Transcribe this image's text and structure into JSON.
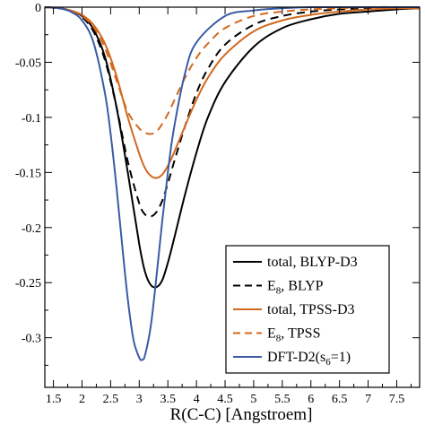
{
  "chart_data": {
    "type": "line",
    "xlabel": "R(C-C) [Angstroem]",
    "ylabel": "",
    "xlim": [
      1.35,
      7.9
    ],
    "ylim": [
      -0.345,
      0
    ],
    "x_ticks": [
      "1.5",
      "2",
      "2.5",
      "3",
      "3.5",
      "4",
      "4.5",
      "5",
      "5.5",
      "6",
      "6.5",
      "7",
      "7.5"
    ],
    "x_tick_values": [
      1.5,
      2,
      2.5,
      3,
      3.5,
      4,
      4.5,
      5,
      5.5,
      6,
      6.5,
      7,
      7.5
    ],
    "y_ticks": [
      "0",
      "-0.05",
      "-0.1",
      "-0.15",
      "-0.2",
      "-0.25",
      "-0.3"
    ],
    "y_tick_values": [
      0,
      -0.05,
      -0.1,
      -0.15,
      -0.2,
      -0.25,
      -0.3
    ],
    "grid": false,
    "legend_position": "bottom-right",
    "series": [
      {
        "name": "total, BLYP-D3",
        "label_main": "total, BLYP-D3",
        "color": "#000000",
        "dash": "solid",
        "x": [
          1.35,
          1.6,
          1.8,
          2.0,
          2.2,
          2.4,
          2.6,
          2.8,
          3.0,
          3.1,
          3.2,
          3.3,
          3.4,
          3.5,
          3.6,
          3.8,
          4.0,
          4.2,
          4.5,
          5.0,
          5.5,
          6.0,
          6.5,
          7.0,
          7.5,
          7.9
        ],
        "y": [
          0,
          -0.001,
          -0.003,
          -0.008,
          -0.02,
          -0.045,
          -0.09,
          -0.15,
          -0.215,
          -0.24,
          -0.252,
          -0.254,
          -0.248,
          -0.232,
          -0.212,
          -0.17,
          -0.132,
          -0.1,
          -0.068,
          -0.036,
          -0.019,
          -0.011,
          -0.006,
          -0.004,
          -0.002,
          -0.001
        ]
      },
      {
        "name": "E8, BLYP",
        "label_main": "E",
        "label_sub": "8",
        "label_rest": ", BLYP",
        "color": "#000000",
        "dash": "dashed",
        "x": [
          1.35,
          1.6,
          1.8,
          2.0,
          2.2,
          2.4,
          2.6,
          2.8,
          3.0,
          3.1,
          3.2,
          3.3,
          3.4,
          3.5,
          3.6,
          3.8,
          4.0,
          4.2,
          4.5,
          5.0,
          5.5,
          6.0,
          6.5,
          7.0,
          7.9
        ],
        "y": [
          0,
          -0.001,
          -0.003,
          -0.009,
          -0.022,
          -0.048,
          -0.09,
          -0.14,
          -0.178,
          -0.188,
          -0.19,
          -0.186,
          -0.176,
          -0.16,
          -0.142,
          -0.108,
          -0.078,
          -0.056,
          -0.034,
          -0.016,
          -0.008,
          -0.004,
          -0.002,
          -0.001,
          0
        ]
      },
      {
        "name": "total, TPSS-D3",
        "label_main": "total, TPSS-D3",
        "color": "#d2691e",
        "dash": "solid",
        "x": [
          1.35,
          1.6,
          1.8,
          2.0,
          2.2,
          2.4,
          2.6,
          2.8,
          3.0,
          3.1,
          3.2,
          3.3,
          3.4,
          3.5,
          3.6,
          3.8,
          4.0,
          4.2,
          4.5,
          5.0,
          5.5,
          6.0,
          6.5,
          7.0,
          7.5,
          7.9
        ],
        "y": [
          0,
          -0.001,
          -0.003,
          -0.007,
          -0.016,
          -0.033,
          -0.062,
          -0.1,
          -0.133,
          -0.146,
          -0.153,
          -0.155,
          -0.152,
          -0.144,
          -0.133,
          -0.108,
          -0.084,
          -0.064,
          -0.043,
          -0.022,
          -0.012,
          -0.007,
          -0.004,
          -0.002,
          -0.001,
          -0.001
        ]
      },
      {
        "name": "E8, TPSS",
        "label_main": "E",
        "label_sub": "8",
        "label_rest": ", TPSS",
        "color": "#d2691e",
        "dash": "dashed",
        "x": [
          1.35,
          1.6,
          1.8,
          2.0,
          2.2,
          2.4,
          2.6,
          2.8,
          3.0,
          3.1,
          3.2,
          3.3,
          3.4,
          3.5,
          3.6,
          3.8,
          4.0,
          4.2,
          4.5,
          5.0,
          5.5,
          6.0,
          6.5,
          7.0,
          7.9
        ],
        "y": [
          0,
          -0.001,
          -0.003,
          -0.008,
          -0.018,
          -0.037,
          -0.066,
          -0.095,
          -0.11,
          -0.114,
          -0.115,
          -0.113,
          -0.106,
          -0.097,
          -0.086,
          -0.064,
          -0.046,
          -0.033,
          -0.019,
          -0.008,
          -0.004,
          -0.002,
          -0.001,
          0,
          0
        ]
      },
      {
        "name": "DFT-D2(s6=1)",
        "label_main": "DFT-D2(s",
        "label_sub": "6",
        "label_rest": "=1)",
        "color": "#3b5ba5",
        "dash": "solid",
        "x": [
          1.35,
          1.6,
          1.8,
          2.0,
          2.2,
          2.4,
          2.5,
          2.6,
          2.7,
          2.8,
          2.9,
          3.0,
          3.05,
          3.1,
          3.2,
          3.3,
          3.4,
          3.5,
          3.6,
          3.8,
          4.0,
          4.5,
          5.0,
          5.5,
          6.0,
          7.0,
          7.9
        ],
        "y": [
          0,
          -0.001,
          -0.004,
          -0.012,
          -0.032,
          -0.078,
          -0.115,
          -0.162,
          -0.215,
          -0.265,
          -0.302,
          -0.318,
          -0.32,
          -0.316,
          -0.29,
          -0.245,
          -0.195,
          -0.15,
          -0.112,
          -0.06,
          -0.032,
          -0.008,
          -0.003,
          -0.001,
          0,
          0,
          0
        ]
      }
    ]
  }
}
